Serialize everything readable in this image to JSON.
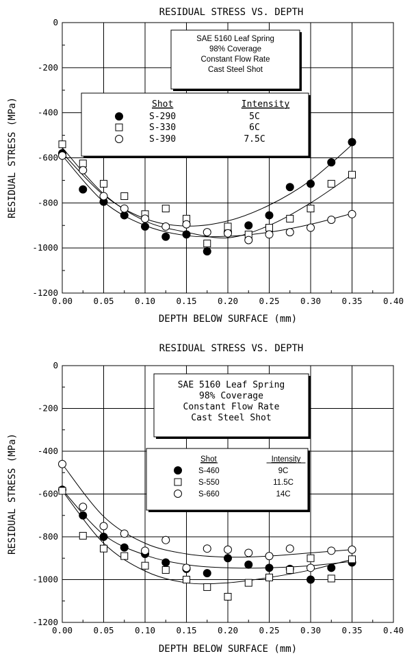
{
  "chart_data": [
    {
      "type": "scatter",
      "title": "RESIDUAL STRESS VS. DEPTH",
      "xlabel": "DEPTH BELOW SURFACE (mm)",
      "ylabel": "RESIDUAL STRESS (MPa)",
      "xlim": [
        0.0,
        0.4
      ],
      "ylim": [
        -1200,
        0
      ],
      "x_ticks": [
        "0.00",
        "0.05",
        "0.10",
        "0.15",
        "0.20",
        "0.25",
        "0.30",
        "0.35",
        "0.40"
      ],
      "y_ticks": [
        "0",
        "-200",
        "-400",
        "-600",
        "-800",
        "-1000",
        "-1200"
      ],
      "grid": true,
      "note_lines": [
        "SAE 5160 Leaf Spring",
        "98% Coverage",
        "Constant Flow Rate",
        "Cast Steel Shot"
      ],
      "legend_headers": [
        "Shot",
        "Intensity"
      ],
      "series": [
        {
          "name": "S-290",
          "intensity": "5C",
          "marker": "filled-circle",
          "x": [
            0.0,
            0.025,
            0.05,
            0.075,
            0.1,
            0.125,
            0.15,
            0.175,
            0.2,
            0.225,
            0.25,
            0.275,
            0.3,
            0.325,
            0.35
          ],
          "y": [
            -580,
            -740,
            -795,
            -855,
            -905,
            -950,
            -940,
            -1015,
            -930,
            -900,
            -855,
            -730,
            -715,
            -620,
            -530
          ],
          "fit_x": [
            0.0,
            0.05,
            0.1,
            0.15,
            0.2,
            0.25,
            0.3,
            0.35
          ],
          "fit_y": [
            -578,
            -765,
            -870,
            -903,
            -880,
            -810,
            -700,
            -542
          ]
        },
        {
          "name": "S-330",
          "intensity": "6C",
          "marker": "open-square",
          "x": [
            0.0,
            0.025,
            0.05,
            0.075,
            0.1,
            0.125,
            0.15,
            0.175,
            0.2,
            0.225,
            0.25,
            0.275,
            0.3,
            0.325,
            0.35
          ],
          "y": [
            -540,
            -625,
            -715,
            -770,
            -850,
            -825,
            -870,
            -980,
            -905,
            -940,
            -910,
            -870,
            -825,
            -715,
            -675
          ],
          "fit_x": [
            0.0,
            0.05,
            0.1,
            0.15,
            0.2,
            0.25,
            0.3,
            0.35
          ],
          "fit_y": [
            -555,
            -760,
            -880,
            -930,
            -955,
            -900,
            -800,
            -675
          ]
        },
        {
          "name": "S-390",
          "intensity": "7.5C",
          "marker": "open-circle",
          "x": [
            0.0,
            0.025,
            0.05,
            0.075,
            0.1,
            0.125,
            0.15,
            0.175,
            0.2,
            0.225,
            0.25,
            0.275,
            0.3,
            0.325,
            0.35
          ],
          "y": [
            -590,
            -655,
            -770,
            -825,
            -870,
            -905,
            -895,
            -930,
            -935,
            -965,
            -940,
            -930,
            -910,
            -875,
            -850
          ],
          "fit_x": [
            0.0,
            0.05,
            0.1,
            0.15,
            0.2,
            0.25,
            0.3,
            0.35
          ],
          "fit_y": [
            -590,
            -795,
            -900,
            -945,
            -948,
            -930,
            -895,
            -847
          ]
        }
      ]
    },
    {
      "type": "scatter",
      "title": "RESIDUAL STRESS VS. DEPTH",
      "xlabel": "DEPTH BELOW SURFACE (mm)",
      "ylabel": "RESIDUAL STRESS (MPa)",
      "xlim": [
        0.0,
        0.4
      ],
      "ylim": [
        -1200,
        0
      ],
      "x_ticks": [
        "0.00",
        "0.05",
        "0.10",
        "0.15",
        "0.20",
        "0.25",
        "0.30",
        "0.35",
        "0.40"
      ],
      "y_ticks": [
        "0",
        "-200",
        "-400",
        "-600",
        "-800",
        "-1000",
        "-1200"
      ],
      "grid": true,
      "note_lines": [
        "SAE 5160 Leaf Spring",
        "98% Coverage",
        "Constant Flow Rate",
        "Cast Steel Shot"
      ],
      "legend_headers": [
        "Shot",
        "Intensity"
      ],
      "series": [
        {
          "name": "S-460",
          "intensity": "9C",
          "marker": "filled-circle",
          "x": [
            0.0,
            0.025,
            0.05,
            0.075,
            0.1,
            0.125,
            0.15,
            0.175,
            0.2,
            0.225,
            0.25,
            0.275,
            0.3,
            0.325,
            0.35
          ],
          "y": [
            -580,
            -700,
            -800,
            -850,
            -880,
            -920,
            -950,
            -970,
            -900,
            -930,
            -945,
            -950,
            -1000,
            -945,
            -920
          ],
          "fit_x": [
            0.0,
            0.05,
            0.1,
            0.15,
            0.2,
            0.25,
            0.3,
            0.35
          ],
          "fit_y": [
            -580,
            -790,
            -885,
            -930,
            -945,
            -945,
            -935,
            -915
          ]
        },
        {
          "name": "S-550",
          "intensity": "11.5C",
          "marker": "open-square",
          "x": [
            0.0,
            0.025,
            0.05,
            0.075,
            0.1,
            0.125,
            0.15,
            0.175,
            0.2,
            0.225,
            0.25,
            0.275,
            0.3,
            0.325,
            0.35
          ],
          "y": [
            -585,
            -795,
            -855,
            -890,
            -935,
            -955,
            -1000,
            -1035,
            -1080,
            -1015,
            -990,
            -955,
            -900,
            -995,
            -905
          ],
          "fit_x": [
            0.0,
            0.05,
            0.1,
            0.15,
            0.2,
            0.25,
            0.3,
            0.35
          ],
          "fit_y": [
            -585,
            -830,
            -960,
            -1015,
            -1015,
            -990,
            -955,
            -905
          ]
        },
        {
          "name": "S-660",
          "intensity": "14C",
          "marker": "open-circle",
          "x": [
            0.0,
            0.025,
            0.05,
            0.075,
            0.1,
            0.125,
            0.15,
            0.175,
            0.2,
            0.225,
            0.25,
            0.275,
            0.3,
            0.325,
            0.35
          ],
          "y": [
            -460,
            -660,
            -750,
            -785,
            -865,
            -815,
            -945,
            -855,
            -860,
            -875,
            -890,
            -855,
            -945,
            -865,
            -860
          ],
          "fit_x": [
            0.0,
            0.05,
            0.1,
            0.15,
            0.2,
            0.25,
            0.3,
            0.35
          ],
          "fit_y": [
            -460,
            -705,
            -830,
            -880,
            -895,
            -890,
            -875,
            -860
          ]
        }
      ]
    }
  ]
}
